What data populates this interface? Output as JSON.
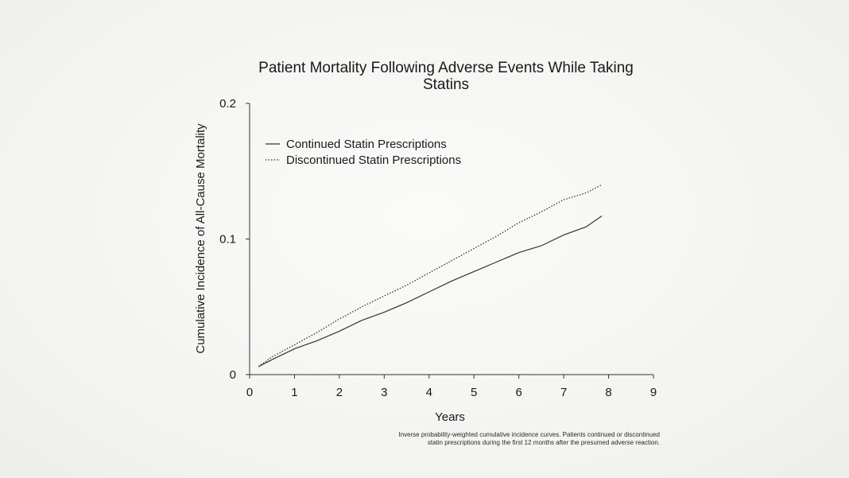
{
  "chart_data": {
    "type": "line",
    "title_lines": [
      "Patient Mortality Following Adverse Events While Taking",
      "Statins"
    ],
    "xlabel": "Years",
    "ylabel": "Cumulative Incidence of All-Cause Mortality",
    "xlim": [
      0,
      9
    ],
    "ylim": [
      0,
      0.2
    ],
    "x_ticks": [
      "0",
      "1",
      "2",
      "3",
      "4",
      "5",
      "6",
      "7",
      "8",
      "9"
    ],
    "y_ticks": [
      "0",
      "0.1",
      "0.2"
    ],
    "grid": false,
    "legend_position": "top-left",
    "series": [
      {
        "name": "Continued Statin Prescriptions",
        "style": "solid",
        "points": [
          [
            0.2,
            0.006
          ],
          [
            0.5,
            0.011
          ],
          [
            1.0,
            0.019
          ],
          [
            1.5,
            0.025
          ],
          [
            2.0,
            0.032
          ],
          [
            2.5,
            0.04
          ],
          [
            3.0,
            0.046
          ],
          [
            3.5,
            0.053
          ],
          [
            4.0,
            0.061
          ],
          [
            4.5,
            0.069
          ],
          [
            5.0,
            0.076
          ],
          [
            5.5,
            0.083
          ],
          [
            6.0,
            0.09
          ],
          [
            6.5,
            0.095
          ],
          [
            7.0,
            0.103
          ],
          [
            7.5,
            0.109
          ],
          [
            7.85,
            0.117
          ]
        ]
      },
      {
        "name": "Discontinued Statin Prescriptions",
        "style": "dotted",
        "points": [
          [
            0.2,
            0.006
          ],
          [
            0.5,
            0.013
          ],
          [
            1.0,
            0.022
          ],
          [
            1.5,
            0.031
          ],
          [
            2.0,
            0.041
          ],
          [
            2.5,
            0.05
          ],
          [
            3.0,
            0.058
          ],
          [
            3.5,
            0.066
          ],
          [
            4.0,
            0.075
          ],
          [
            4.5,
            0.084
          ],
          [
            5.0,
            0.093
          ],
          [
            5.5,
            0.102
          ],
          [
            6.0,
            0.112
          ],
          [
            6.5,
            0.12
          ],
          [
            7.0,
            0.129
          ],
          [
            7.5,
            0.134
          ],
          [
            7.85,
            0.14
          ]
        ]
      }
    ],
    "footnote_lines": [
      "Inverse probability-weighted cumulative incidence curves. Patients continued or discontinued",
      "statin prescriptions during the first 12 months after the presumed adverse reaction."
    ]
  }
}
